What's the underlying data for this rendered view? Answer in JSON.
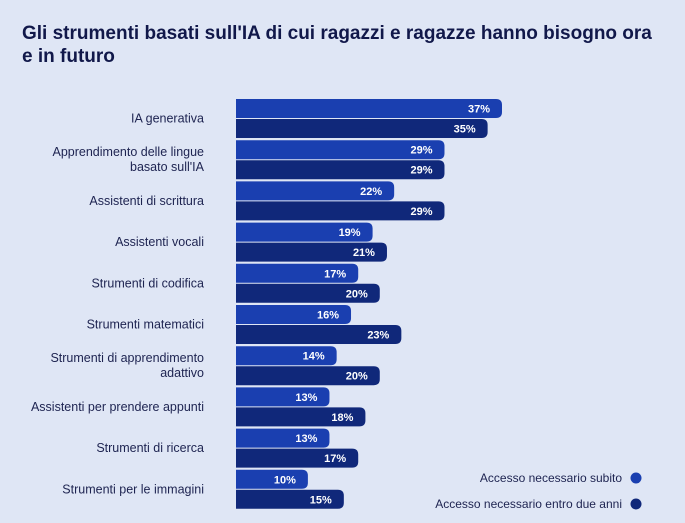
{
  "title": "Gli strumenti basati sull'IA di cui ragazzi e ragazze hanno bisogno ora e in futuro",
  "chart_data": {
    "type": "bar",
    "orientation": "horizontal",
    "categories": [
      "IA generativa",
      "Apprendimento delle lingue basato sull'IA",
      "Assistenti di scrittura",
      "Assistenti vocali",
      "Strumenti di codifica",
      "Strumenti matematici",
      "Strumenti di apprendimento adattivo",
      "Assistenti per prendere appunti",
      "Strumenti di ricerca",
      "Strumenti per le immagini"
    ],
    "category_lines": [
      [
        "IA generativa"
      ],
      [
        "Apprendimento delle lingue",
        "basato sull'IA"
      ],
      [
        "Assistenti di scrittura"
      ],
      [
        "Assistenti vocali"
      ],
      [
        "Strumenti di codifica"
      ],
      [
        "Strumenti matematici"
      ],
      [
        "Strumenti di apprendimento",
        "adattivo"
      ],
      [
        "Assistenti per prendere appunti"
      ],
      [
        "Strumenti di ricerca"
      ],
      [
        "Strumenti per le immagini"
      ]
    ],
    "series": [
      {
        "name": "Accesso necessario subito",
        "values": [
          37,
          29,
          22,
          19,
          17,
          16,
          14,
          13,
          13,
          10
        ],
        "color": "#1a3fb0"
      },
      {
        "name": "Accesso necessario entro due anni",
        "values": [
          35,
          29,
          29,
          21,
          20,
          23,
          20,
          18,
          17,
          15
        ],
        "color": "#10287a"
      }
    ],
    "value_suffix": "%",
    "xlim": [
      0,
      40
    ],
    "grid": false,
    "legend_position": "bottom-right"
  }
}
